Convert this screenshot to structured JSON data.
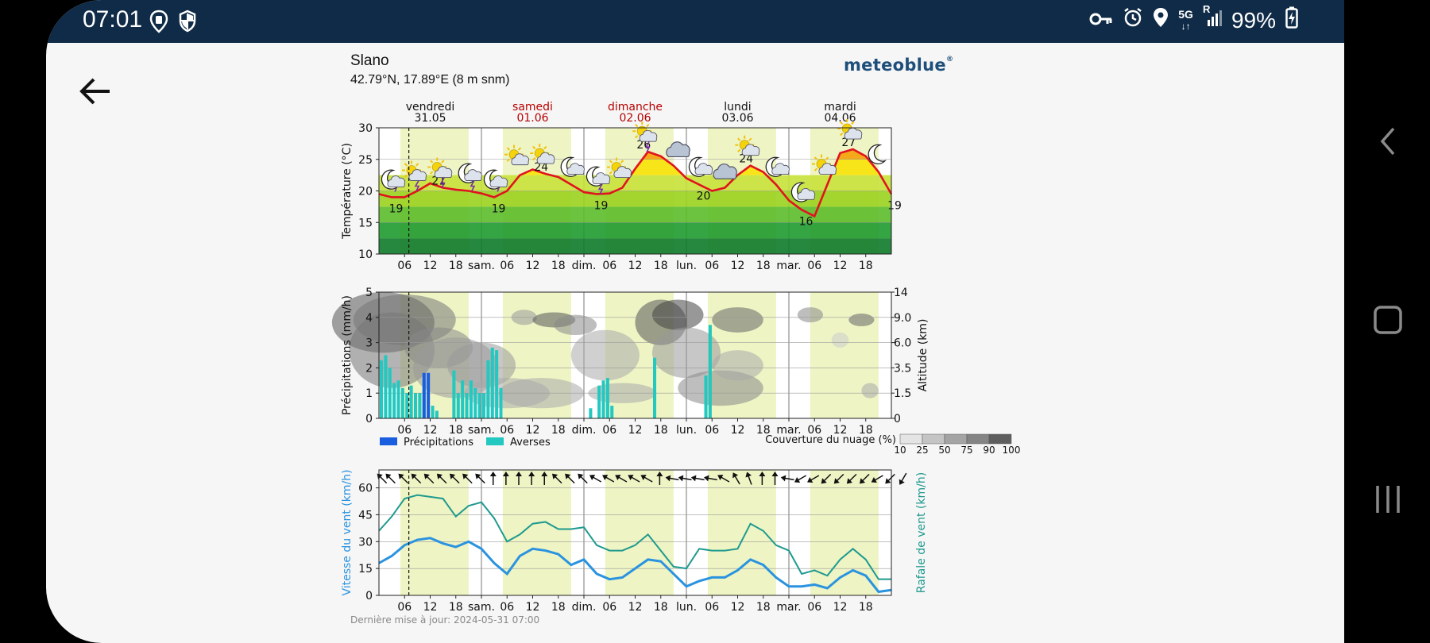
{
  "status_bar": {
    "time": "07:01",
    "network": "5G",
    "signal_label": "R",
    "battery": "99%",
    "icons": [
      "location-shield-icon",
      "security-shield-icon",
      "key-icon",
      "alarm-icon",
      "location-pin-icon",
      "signal-icon",
      "battery-charging-icon"
    ]
  },
  "navigation": {
    "back_icon": "arrow-left-icon",
    "right_buttons": [
      "back-chevron-icon",
      "home-square-icon",
      "recents-icon"
    ]
  },
  "header": {
    "title": "Slano",
    "coords": "42.79°N, 17.89°E (8 m snm)",
    "brand": "meteoblue",
    "brand_mark": "®"
  },
  "days": [
    {
      "name": "vendredi",
      "date": "31.05",
      "weekend": false
    },
    {
      "name": "samedi",
      "date": "01.06",
      "weekend": true
    },
    {
      "name": "dimanche",
      "date": "02.06",
      "weekend": true
    },
    {
      "name": "lundi",
      "date": "03.06",
      "weekend": false
    },
    {
      "name": "mardi",
      "date": "04.06",
      "weekend": false
    }
  ],
  "x_ticks": [
    "06",
    "12",
    "18",
    "sam.",
    "06",
    "12",
    "18",
    "dim.",
    "06",
    "12",
    "18",
    "lun.",
    "06",
    "12",
    "18",
    "mar.",
    "06",
    "12",
    "18"
  ],
  "colors": {
    "weekday_text": "#111111",
    "weekend_text": "#b80000",
    "temperature_line": "#e0141e",
    "precip": "#1a5ee0",
    "showers": "#23c8c0",
    "wind_speed": "#2a93e0",
    "wind_gust": "#1f9a8f",
    "daylight": "#eef4c4"
  },
  "panel_temp": {
    "ylabel": "Température (°C)",
    "y_ticks": [
      "10",
      "15",
      "20",
      "25",
      "30"
    ],
    "ylim": [
      10,
      30
    ],
    "labels": [
      {
        "h": 4,
        "v": 19
      },
      {
        "h": 14,
        "v": 21
      },
      {
        "h": 28,
        "v": 19
      },
      {
        "h": 38,
        "v": 24
      },
      {
        "h": 52,
        "v": 19
      },
      {
        "h": 62,
        "v": 26
      },
      {
        "h": 76,
        "v": 20
      },
      {
        "h": 86,
        "v": 24
      },
      {
        "h": 100,
        "v": 16
      },
      {
        "h": 110,
        "v": 27
      },
      {
        "h": 120,
        "v": 19
      }
    ],
    "weather_icons": [
      {
        "h": 3,
        "icon": "moon-rain-icon"
      },
      {
        "h": 8,
        "icon": "sun-thunder-icon"
      },
      {
        "h": 14,
        "icon": "sun-thunder-icon"
      },
      {
        "h": 21,
        "icon": "moon-thunder-icon"
      },
      {
        "h": 27,
        "icon": "moon-rain-icon"
      },
      {
        "h": 32,
        "icon": "sun-cloud-icon"
      },
      {
        "h": 38,
        "icon": "sun-cloud-icon"
      },
      {
        "h": 45,
        "icon": "moon-cloud-icon"
      },
      {
        "h": 51,
        "icon": "moon-thunder-icon"
      },
      {
        "h": 56,
        "icon": "sun-cloud-icon"
      },
      {
        "h": 62,
        "icon": "sun-thunder-icon"
      },
      {
        "h": 69,
        "icon": "cloud-icon"
      },
      {
        "h": 75,
        "icon": "moon-cloud-icon"
      },
      {
        "h": 80,
        "icon": "cloud-icon"
      },
      {
        "h": 86,
        "icon": "sun-cloud-icon"
      },
      {
        "h": 93,
        "icon": "moon-cloud-icon"
      },
      {
        "h": 99,
        "icon": "moon-cloud-icon"
      },
      {
        "h": 104,
        "icon": "sun-cloud-icon"
      },
      {
        "h": 110,
        "icon": "sun-cloud-icon"
      },
      {
        "h": 117,
        "icon": "moon-icon"
      }
    ]
  },
  "panel_precip": {
    "ylabel": "Précipitations (mm/h)",
    "y_ticks": [
      "0",
      "1",
      "2",
      "3",
      "4",
      "5"
    ],
    "ylim": [
      0,
      5
    ],
    "y2label": "Altitude (km)",
    "y2_ticks": [
      "0",
      "1.5",
      "3.5",
      "6.0",
      "9.0",
      "14"
    ],
    "legend": {
      "precip": "Précipitations",
      "showers": "Averses"
    },
    "cloud_legend": {
      "title": "Couverture du nuage (%)",
      "ticks": [
        "10",
        "25",
        "50",
        "75",
        "90",
        "100"
      ]
    }
  },
  "panel_wind": {
    "ylabel": "Vitesse du vent (km/h)",
    "y2label": "Rafale de vent (km/h)",
    "y_ticks": [
      "0",
      "15",
      "30",
      "45",
      "60"
    ],
    "ylim": [
      0,
      70
    ]
  },
  "updated": "Dernière mise à jour: 2024-05-31 07:00",
  "chart_data": [
    {
      "type": "line",
      "title": "",
      "xlabel": "",
      "ylabel": "Température (°C)",
      "ylim": [
        10,
        30
      ],
      "x_unit": "hours since 2024-05-31 00:00",
      "series": [
        {
          "name": "",
          "points": [
            [
              0,
              19.5
            ],
            [
              3,
              19
            ],
            [
              6,
              19
            ],
            [
              9,
              20
            ],
            [
              12,
              21.2
            ],
            [
              15,
              20.5
            ],
            [
              18,
              20.2
            ],
            [
              21,
              20
            ],
            [
              24,
              19.6
            ],
            [
              27,
              19
            ],
            [
              30,
              20
            ],
            [
              33,
              22.5
            ],
            [
              36,
              23.4
            ],
            [
              39,
              22.7
            ],
            [
              42,
              22.2
            ],
            [
              45,
              21
            ],
            [
              48,
              19.8
            ],
            [
              51,
              19.5
            ],
            [
              54,
              19.6
            ],
            [
              57,
              20.5
            ],
            [
              60,
              23.5
            ],
            [
              63,
              26.2
            ],
            [
              66,
              25.5
            ],
            [
              69,
              24
            ],
            [
              72,
              22
            ],
            [
              75,
              21
            ],
            [
              78,
              20
            ],
            [
              81,
              20.5
            ],
            [
              84,
              22.5
            ],
            [
              87,
              24
            ],
            [
              90,
              23
            ],
            [
              93,
              21
            ],
            [
              96,
              18.5
            ],
            [
              99,
              17
            ],
            [
              102,
              16
            ],
            [
              105,
              21
            ],
            [
              108,
              26
            ],
            [
              111,
              26.6
            ],
            [
              114,
              25.5
            ],
            [
              117,
              23
            ],
            [
              120,
              19.5
            ]
          ]
        }
      ]
    },
    {
      "type": "bar",
      "title": "",
      "xlabel": "",
      "ylabel": "Précipitations (mm/h)",
      "ylim": [
        0,
        5
      ],
      "x_unit": "hours since 2024-05-31 00:00",
      "series": [
        {
          "name": "Précipitations",
          "points": [
            [
              10,
              1.8
            ],
            [
              11,
              1.8
            ]
          ]
        },
        {
          "name": "Averses",
          "points": [
            [
              0,
              2.3
            ],
            [
              1,
              2.5
            ],
            [
              2,
              2.0
            ],
            [
              3,
              1.4
            ],
            [
              4,
              1.5
            ],
            [
              5,
              1.2
            ],
            [
              6,
              1.0
            ],
            [
              7,
              1.3
            ],
            [
              8,
              1.0
            ],
            [
              9,
              1.0
            ],
            [
              10,
              1.5
            ],
            [
              12,
              0.5
            ],
            [
              13,
              0.3
            ],
            [
              17,
              1.9
            ],
            [
              18,
              1.0
            ],
            [
              19,
              1.5
            ],
            [
              20,
              1.0
            ],
            [
              21,
              1.5
            ],
            [
              22,
              1.2
            ],
            [
              23,
              1.0
            ],
            [
              24,
              1.0
            ],
            [
              25,
              2.3
            ],
            [
              26,
              2.8
            ],
            [
              27,
              2.7
            ],
            [
              28,
              1.2
            ],
            [
              49,
              0.4
            ],
            [
              51,
              1.3
            ],
            [
              52,
              1.5
            ],
            [
              53,
              1.6
            ],
            [
              54,
              0.5
            ],
            [
              64,
              2.4
            ],
            [
              76,
              1.7
            ],
            [
              77,
              3.7
            ]
          ]
        }
      ]
    },
    {
      "type": "line",
      "title": "",
      "xlabel": "",
      "ylabel": "Vitesse du vent (km/h)",
      "ylim": [
        0,
        70
      ],
      "x_unit": "hours since 2024-05-31 00:00",
      "series": [
        {
          "name": "Vitesse du vent (km/h)",
          "points": [
            [
              0,
              18
            ],
            [
              3,
              22
            ],
            [
              6,
              28
            ],
            [
              9,
              31
            ],
            [
              12,
              32
            ],
            [
              15,
              29
            ],
            [
              18,
              27
            ],
            [
              21,
              30
            ],
            [
              24,
              26
            ],
            [
              27,
              18
            ],
            [
              30,
              12
            ],
            [
              33,
              22
            ],
            [
              36,
              26
            ],
            [
              39,
              25
            ],
            [
              42,
              23
            ],
            [
              45,
              17
            ],
            [
              48,
              20
            ],
            [
              51,
              12
            ],
            [
              54,
              9
            ],
            [
              57,
              10
            ],
            [
              60,
              15
            ],
            [
              63,
              20
            ],
            [
              66,
              19
            ],
            [
              69,
              12
            ],
            [
              72,
              5
            ],
            [
              75,
              8
            ],
            [
              78,
              10
            ],
            [
              81,
              10
            ],
            [
              84,
              14
            ],
            [
              87,
              20
            ],
            [
              90,
              17
            ],
            [
              93,
              10
            ],
            [
              96,
              5
            ],
            [
              99,
              5
            ],
            [
              102,
              6
            ],
            [
              105,
              4
            ],
            [
              108,
              10
            ],
            [
              111,
              14
            ],
            [
              114,
              11
            ],
            [
              117,
              2
            ],
            [
              120,
              3
            ]
          ]
        },
        {
          "name": "Rafale de vent (km/h)",
          "points": [
            [
              0,
              36
            ],
            [
              3,
              44
            ],
            [
              6,
              54
            ],
            [
              9,
              56
            ],
            [
              12,
              55
            ],
            [
              15,
              54
            ],
            [
              18,
              44
            ],
            [
              21,
              50
            ],
            [
              24,
              52
            ],
            [
              27,
              43
            ],
            [
              30,
              30
            ],
            [
              33,
              34
            ],
            [
              36,
              40
            ],
            [
              39,
              41
            ],
            [
              42,
              37
            ],
            [
              45,
              37
            ],
            [
              48,
              38
            ],
            [
              51,
              28
            ],
            [
              54,
              25
            ],
            [
              57,
              25
            ],
            [
              60,
              28
            ],
            [
              63,
              34
            ],
            [
              66,
              25
            ],
            [
              69,
              16
            ],
            [
              72,
              15
            ],
            [
              75,
              26
            ],
            [
              78,
              25
            ],
            [
              81,
              25
            ],
            [
              84,
              26
            ],
            [
              87,
              40
            ],
            [
              90,
              36
            ],
            [
              93,
              28
            ],
            [
              96,
              25
            ],
            [
              99,
              12
            ],
            [
              102,
              14
            ],
            [
              105,
              11
            ],
            [
              108,
              20
            ],
            [
              111,
              26
            ],
            [
              114,
              20
            ],
            [
              117,
              9
            ],
            [
              120,
              9
            ]
          ]
        }
      ]
    }
  ]
}
